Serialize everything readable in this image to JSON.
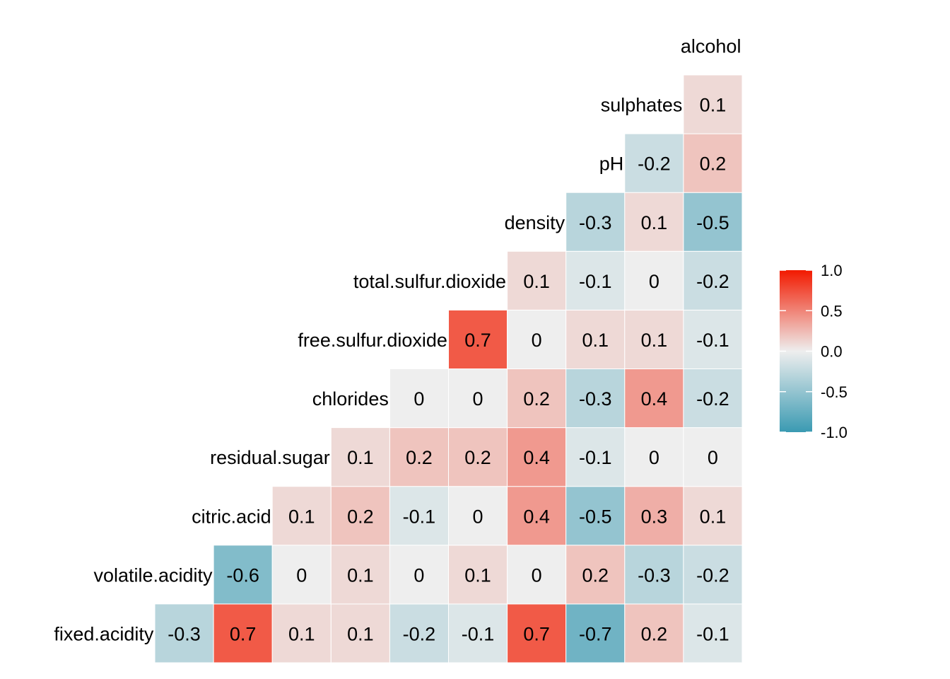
{
  "chart_data": {
    "type": "heatmap",
    "variables": [
      "fixed.acidity",
      "volatile.acidity",
      "citric.acid",
      "residual.sugar",
      "chlorides",
      "free.sulfur.dioxide",
      "total.sulfur.dioxide",
      "density",
      "pH",
      "sulphates",
      "alcohol"
    ],
    "display_labels": [
      "fixed.acidity",
      "volatile.acidity",
      "citric.acid",
      "residual.sugar",
      "chlorides",
      "free.sulfur.dioxide",
      "total.sulfur.dioxide",
      "density",
      "pH",
      "sulphates",
      "alcohol"
    ],
    "cells": [
      {
        "row": "fixed.acidity",
        "col": "volatile.acidity",
        "value": -0.3
      },
      {
        "row": "fixed.acidity",
        "col": "citric.acid",
        "value": 0.7
      },
      {
        "row": "fixed.acidity",
        "col": "residual.sugar",
        "value": 0.1
      },
      {
        "row": "fixed.acidity",
        "col": "chlorides",
        "value": 0.1
      },
      {
        "row": "fixed.acidity",
        "col": "free.sulfur.dioxide",
        "value": -0.2
      },
      {
        "row": "fixed.acidity",
        "col": "total.sulfur.dioxide",
        "value": -0.1
      },
      {
        "row": "fixed.acidity",
        "col": "density",
        "value": 0.7
      },
      {
        "row": "fixed.acidity",
        "col": "pH",
        "value": -0.7
      },
      {
        "row": "fixed.acidity",
        "col": "sulphates",
        "value": 0.2
      },
      {
        "row": "fixed.acidity",
        "col": "alcohol",
        "value": -0.1
      },
      {
        "row": "volatile.acidity",
        "col": "citric.acid",
        "value": -0.6
      },
      {
        "row": "volatile.acidity",
        "col": "residual.sugar",
        "value": 0
      },
      {
        "row": "volatile.acidity",
        "col": "chlorides",
        "value": 0.1
      },
      {
        "row": "volatile.acidity",
        "col": "free.sulfur.dioxide",
        "value": 0
      },
      {
        "row": "volatile.acidity",
        "col": "total.sulfur.dioxide",
        "value": 0.1
      },
      {
        "row": "volatile.acidity",
        "col": "density",
        "value": 0
      },
      {
        "row": "volatile.acidity",
        "col": "pH",
        "value": 0.2
      },
      {
        "row": "volatile.acidity",
        "col": "sulphates",
        "value": -0.3
      },
      {
        "row": "volatile.acidity",
        "col": "alcohol",
        "value": -0.2
      },
      {
        "row": "citric.acid",
        "col": "residual.sugar",
        "value": 0.1
      },
      {
        "row": "citric.acid",
        "col": "chlorides",
        "value": 0.2
      },
      {
        "row": "citric.acid",
        "col": "free.sulfur.dioxide",
        "value": -0.1
      },
      {
        "row": "citric.acid",
        "col": "total.sulfur.dioxide",
        "value": 0
      },
      {
        "row": "citric.acid",
        "col": "density",
        "value": 0.4
      },
      {
        "row": "citric.acid",
        "col": "pH",
        "value": -0.5
      },
      {
        "row": "citric.acid",
        "col": "sulphates",
        "value": 0.3
      },
      {
        "row": "citric.acid",
        "col": "alcohol",
        "value": 0.1
      },
      {
        "row": "residual.sugar",
        "col": "chlorides",
        "value": 0.1
      },
      {
        "row": "residual.sugar",
        "col": "free.sulfur.dioxide",
        "value": 0.2
      },
      {
        "row": "residual.sugar",
        "col": "total.sulfur.dioxide",
        "value": 0.2
      },
      {
        "row": "residual.sugar",
        "col": "density",
        "value": 0.4
      },
      {
        "row": "residual.sugar",
        "col": "pH",
        "value": -0.1
      },
      {
        "row": "residual.sugar",
        "col": "sulphates",
        "value": 0
      },
      {
        "row": "residual.sugar",
        "col": "alcohol",
        "value": 0
      },
      {
        "row": "chlorides",
        "col": "free.sulfur.dioxide",
        "value": 0
      },
      {
        "row": "chlorides",
        "col": "total.sulfur.dioxide",
        "value": 0
      },
      {
        "row": "chlorides",
        "col": "density",
        "value": 0.2
      },
      {
        "row": "chlorides",
        "col": "pH",
        "value": -0.3
      },
      {
        "row": "chlorides",
        "col": "sulphates",
        "value": 0.4
      },
      {
        "row": "chlorides",
        "col": "alcohol",
        "value": -0.2
      },
      {
        "row": "free.sulfur.dioxide",
        "col": "total.sulfur.dioxide",
        "value": 0.7
      },
      {
        "row": "free.sulfur.dioxide",
        "col": "density",
        "value": 0
      },
      {
        "row": "free.sulfur.dioxide",
        "col": "pH",
        "value": 0.1
      },
      {
        "row": "free.sulfur.dioxide",
        "col": "sulphates",
        "value": 0.1
      },
      {
        "row": "free.sulfur.dioxide",
        "col": "alcohol",
        "value": -0.1
      },
      {
        "row": "total.sulfur.dioxide",
        "col": "density",
        "value": 0.1
      },
      {
        "row": "total.sulfur.dioxide",
        "col": "pH",
        "value": -0.1
      },
      {
        "row": "total.sulfur.dioxide",
        "col": "sulphates",
        "value": 0
      },
      {
        "row": "total.sulfur.dioxide",
        "col": "alcohol",
        "value": -0.2
      },
      {
        "row": "density",
        "col": "pH",
        "value": -0.3
      },
      {
        "row": "density",
        "col": "sulphates",
        "value": 0.1
      },
      {
        "row": "density",
        "col": "alcohol",
        "value": -0.5
      },
      {
        "row": "pH",
        "col": "sulphates",
        "value": -0.2
      },
      {
        "row": "pH",
        "col": "alcohol",
        "value": 0.2
      },
      {
        "row": "sulphates",
        "col": "alcohol",
        "value": 0.1
      }
    ],
    "color_scale": {
      "low": "#3A9AB2",
      "mid": "#EEEEEE",
      "high": "#F21A00",
      "limits": [
        -1,
        1
      ]
    },
    "legend": {
      "ticks": [
        "1.0",
        "0.5",
        "0.0",
        "-0.5",
        "-1.0"
      ],
      "tick_values": [
        1,
        0.5,
        0,
        -0.5,
        -1
      ],
      "position": "right"
    },
    "title": "",
    "xlabel": "",
    "ylabel": "",
    "grid": false
  }
}
